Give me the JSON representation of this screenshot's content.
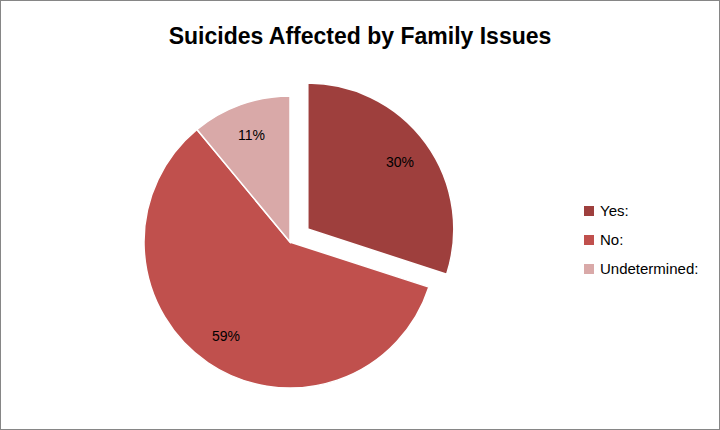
{
  "chart_data": {
    "type": "pie",
    "title": "Suicides Affected by Family Issues",
    "categories": [
      "Yes:",
      "No:",
      "Undetermined:"
    ],
    "values": [
      30,
      59,
      11
    ],
    "value_labels": [
      "30%",
      "59%",
      "11%"
    ],
    "colors": [
      "#9e3f3d",
      "#c0504d",
      "#d9a9a8"
    ],
    "data_labels": true,
    "legend": "right"
  }
}
